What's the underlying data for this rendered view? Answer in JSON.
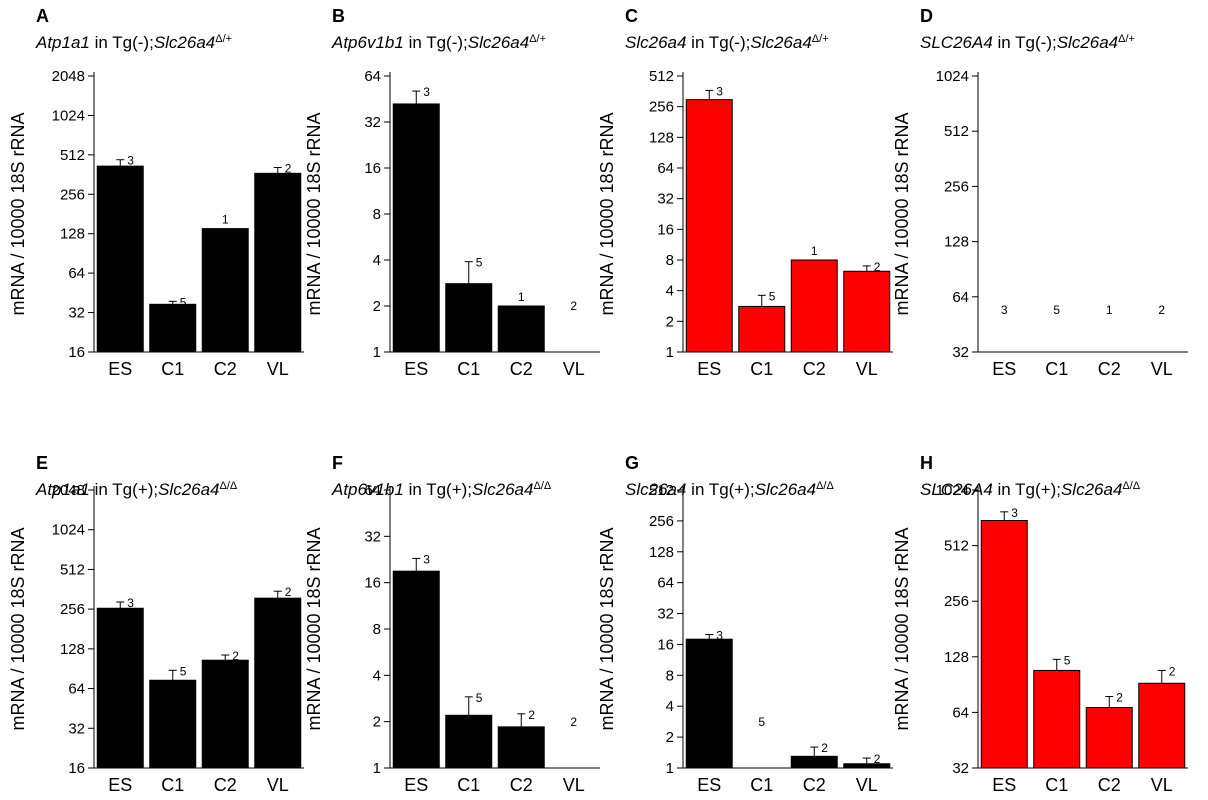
{
  "chart_data": [
    {
      "type": "bar",
      "panel": "A",
      "title": {
        "gene": "Atp1a1",
        "mid": " in Tg(-);",
        "allele": "Slc26a4",
        "sup": "Δ/+"
      },
      "ylabel": "mRNA / 10000 18S rRNA",
      "yscale": "log2",
      "ylim": [
        16,
        2048
      ],
      "yticks": [
        "16",
        "32",
        "64",
        "128",
        "256",
        "512",
        "1024",
        "2048"
      ],
      "categories": [
        "ES",
        "C1",
        "C2",
        "VL"
      ],
      "values": [
        420,
        37,
        140,
        370
      ],
      "errors": [
        470,
        39,
        null,
        410
      ],
      "n": [
        "3",
        "5",
        "1",
        "2"
      ],
      "color": "#000000"
    },
    {
      "type": "bar",
      "panel": "B",
      "title": {
        "gene": "Atp6v1b1",
        "mid": " in Tg(-);",
        "allele": "Slc26a4",
        "sup": "Δ/+"
      },
      "ylabel": "mRNA / 10000 18S rRNA",
      "yscale": "log2",
      "ylim": [
        1,
        64
      ],
      "yticks": [
        "1",
        "2",
        "4",
        "8",
        "16",
        "32",
        "64"
      ],
      "categories": [
        "ES",
        "C1",
        "C2",
        "VL"
      ],
      "values": [
        42,
        2.8,
        2.0,
        null
      ],
      "errors": [
        51,
        3.9,
        null,
        null
      ],
      "n": [
        "3",
        "5",
        "1",
        "2"
      ],
      "color": "#000000"
    },
    {
      "type": "bar",
      "panel": "C",
      "title": {
        "gene": "Slc26a4",
        "mid": " in Tg(-);",
        "allele": "Slc26a4",
        "sup": "Δ/+"
      },
      "ylabel": "mRNA / 10000 18S rRNA",
      "yscale": "log2",
      "ylim": [
        1,
        512
      ],
      "yticks": [
        "1",
        "2",
        "4",
        "8",
        "16",
        "32",
        "64",
        "128",
        "256",
        "512"
      ],
      "categories": [
        "ES",
        "C1",
        "C2",
        "VL"
      ],
      "values": [
        300,
        2.8,
        8,
        6.2
      ],
      "errors": [
        370,
        3.6,
        null,
        7.0
      ],
      "n": [
        "3",
        "5",
        "1",
        "2"
      ],
      "color": "#ff0000"
    },
    {
      "type": "bar",
      "panel": "D",
      "title": {
        "gene": "SLC26A4",
        "mid": " in Tg(-);",
        "allele": "Slc26a4",
        "sup": "Δ/+"
      },
      "ylabel": "mRNA / 10000 18S rRNA",
      "yscale": "log2",
      "ylim": [
        32,
        1024
      ],
      "yticks": [
        "32",
        "64",
        "128",
        "256",
        "512",
        "1024"
      ],
      "categories": [
        "ES",
        "C1",
        "C2",
        "VL"
      ],
      "values": [
        null,
        null,
        null,
        null
      ],
      "errors": [
        null,
        null,
        null,
        null
      ],
      "n": [
        "3",
        "5",
        "1",
        "2"
      ],
      "n_at": 55,
      "color": "#ff0000"
    },
    {
      "type": "bar",
      "panel": "E",
      "title": {
        "gene": "Atp1a1",
        "mid": " in Tg(+);",
        "allele": "Slc26a4",
        "sup": "Δ/Δ"
      },
      "ylabel": "mRNA / 10000 18S rRNA",
      "yscale": "log2",
      "ylim": [
        16,
        2048
      ],
      "yticks": [
        "16",
        "32",
        "64",
        "128",
        "256",
        "512",
        "1024",
        "2048"
      ],
      "categories": [
        "ES",
        "C1",
        "C2",
        "VL"
      ],
      "values": [
        260,
        74,
        105,
        310
      ],
      "errors": [
        290,
        88,
        115,
        350
      ],
      "n": [
        "3",
        "5",
        "2",
        "2"
      ],
      "color": "#000000"
    },
    {
      "type": "bar",
      "panel": "F",
      "title": {
        "gene": "Atp6v1b1",
        "mid": " in Tg(+);",
        "allele": "Slc26a4",
        "sup": "Δ/Δ"
      },
      "ylabel": "mRNA / 10000 18S rRNA",
      "yscale": "log2",
      "ylim": [
        1,
        64
      ],
      "yticks": [
        "1",
        "2",
        "4",
        "8",
        "16",
        "32",
        "64"
      ],
      "categories": [
        "ES",
        "C1",
        "C2",
        "VL"
      ],
      "values": [
        19,
        2.2,
        1.85,
        null
      ],
      "errors": [
        23,
        2.9,
        2.25,
        null
      ],
      "n": [
        "3",
        "5",
        "2",
        "2"
      ],
      "color": "#000000"
    },
    {
      "type": "bar",
      "panel": "G",
      "title": {
        "gene": "Slc26a4",
        "mid": " in Tg(+);",
        "allele": "Slc26a4",
        "sup": "Δ/Δ"
      },
      "ylabel": "mRNA / 10000 18S rRNA",
      "yscale": "log2",
      "ylim": [
        1,
        512
      ],
      "yticks": [
        "1",
        "2",
        "4",
        "8",
        "16",
        "32",
        "64",
        "128",
        "256",
        "512"
      ],
      "categories": [
        "ES",
        "C1",
        "C2",
        "VL"
      ],
      "values": [
        18,
        null,
        1.3,
        1.1
      ],
      "errors": [
        20,
        null,
        1.6,
        1.25
      ],
      "n": [
        "3",
        "5",
        "2",
        "2"
      ],
      "color": "#000000"
    },
    {
      "type": "bar",
      "panel": "H",
      "title": {
        "gene": "SLC26A4",
        "mid": " in Tg(+);",
        "allele": "Slc26a4",
        "sup": "Δ/Δ"
      },
      "ylabel": "mRNA / 10000 18S rRNA",
      "yscale": "log2",
      "ylim": [
        32,
        1024
      ],
      "yticks": [
        "32",
        "64",
        "128",
        "256",
        "512",
        "1024"
      ],
      "categories": [
        "ES",
        "C1",
        "C2",
        "VL"
      ],
      "values": [
        700,
        108,
        68,
        92
      ],
      "errors": [
        780,
        124,
        78,
        108
      ],
      "n": [
        "3",
        "5",
        "2",
        "2"
      ],
      "color": "#ff0000"
    }
  ]
}
